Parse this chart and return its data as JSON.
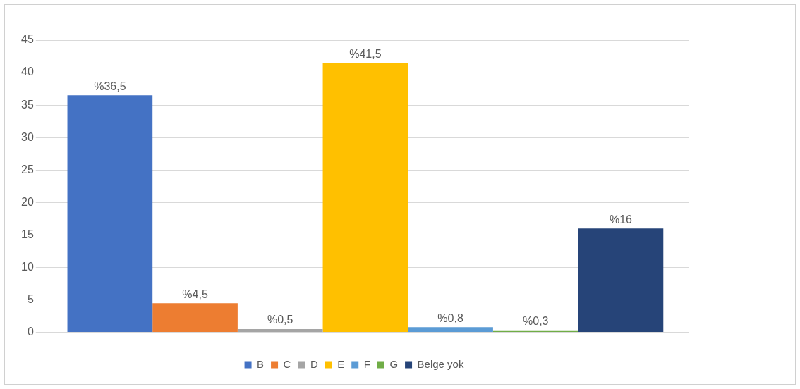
{
  "chart_data": {
    "type": "bar",
    "categories": [
      null
    ],
    "series": [
      {
        "name": "B",
        "color": "#4472c4",
        "values": [
          36.5
        ],
        "value_labels": [
          "%36,5"
        ]
      },
      {
        "name": "C",
        "color": "#ed7d31",
        "values": [
          4.5
        ],
        "value_labels": [
          "%4,5"
        ]
      },
      {
        "name": "D",
        "color": "#a5a5a5",
        "values": [
          0.5
        ],
        "value_labels": [
          "%0,5"
        ]
      },
      {
        "name": "E",
        "color": "#ffc000",
        "values": [
          41.5
        ],
        "value_labels": [
          "%41,5"
        ]
      },
      {
        "name": "F",
        "color": "#5b9bd5",
        "values": [
          0.8
        ],
        "value_labels": [
          "%0,8"
        ]
      },
      {
        "name": "G",
        "color": "#70ad47",
        "values": [
          0.3
        ],
        "value_labels": [
          "%0,3"
        ]
      },
      {
        "name": "Belge yok",
        "color": "#264478",
        "values": [
          16
        ],
        "value_labels": [
          "%16"
        ]
      }
    ],
    "ylim": [
      0,
      45
    ],
    "yticks": [
      0,
      5,
      10,
      15,
      20,
      25,
      30,
      35,
      40,
      45
    ],
    "grid": "y",
    "legend": "bottom"
  }
}
